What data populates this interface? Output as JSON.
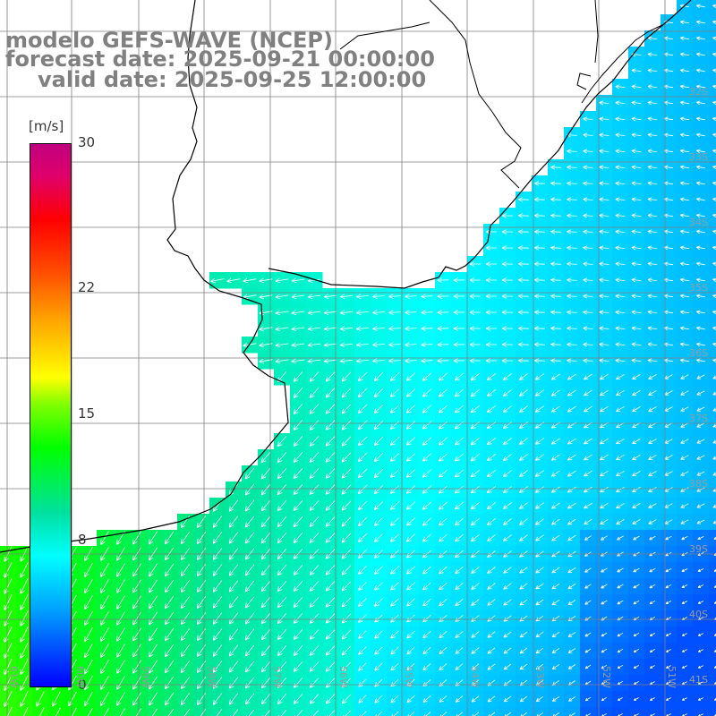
{
  "title": {
    "model": "modelo GEFS-WAVE (NCEP)",
    "forecast": "forecast date: 2025-09-21 00:00:00",
    "valid": "valid date: 2025-09-25 12:00:00"
  },
  "colorbar": {
    "unit": "[m/s]",
    "ticks": [
      "30",
      "22",
      "15",
      "8",
      "0"
    ],
    "tick_values": [
      30,
      22,
      15,
      8,
      0
    ],
    "colors": [
      "#0000ff",
      "#00a0ff",
      "#00ffff",
      "#00ff00",
      "#ffff00",
      "#ff0000",
      "#c0007f"
    ]
  },
  "axes": {
    "lat_labels": [
      "32S",
      "33S",
      "34S",
      "35S",
      "36S",
      "37S",
      "38S",
      "39S",
      "40S",
      "41S"
    ],
    "lon_labels": [
      "61W",
      "60W",
      "59W",
      "58W",
      "57W",
      "56W",
      "55W",
      "54W",
      "53W",
      "52W",
      "51W"
    ],
    "lat_range": [
      -41,
      -31
    ],
    "lon_range": [
      -61,
      -51
    ],
    "grid": true
  },
  "colors": {
    "grid": "#7f7f7f",
    "coast": "#000000",
    "arrow": "#ffffff",
    "land": "#ffffff"
  }
}
